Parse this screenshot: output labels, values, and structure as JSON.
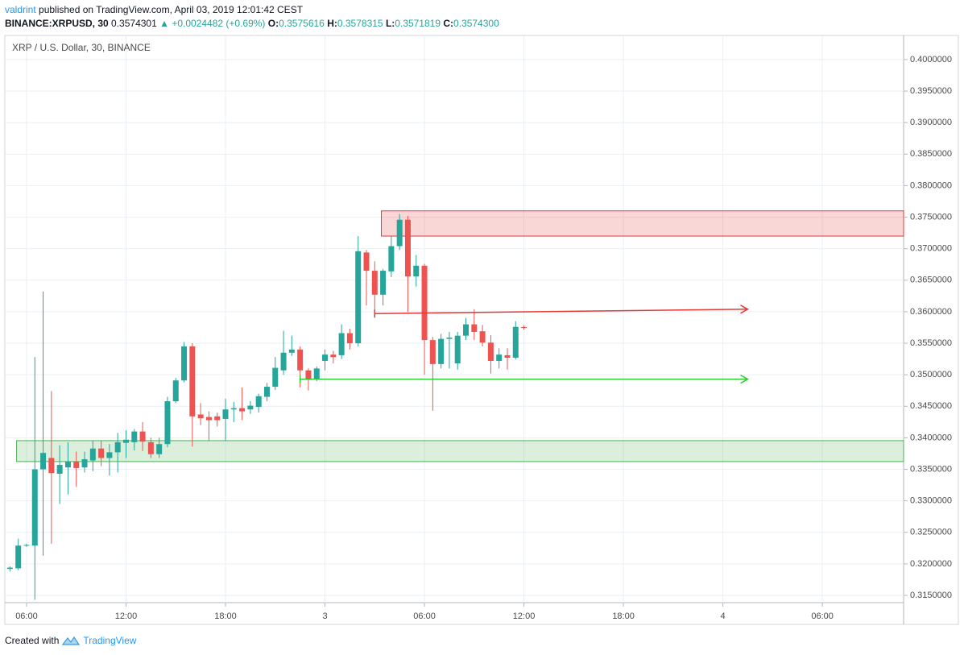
{
  "header": {
    "author": "valdrint",
    "published": "published on TradingView.com, April 03, 2019 12:01:42 CEST",
    "symbol": "BINANCE:XRPUSD, 30",
    "last": "0.3574301",
    "change": "▲ +0.0024482 (+0.69%)",
    "ohlc": [
      {
        "label": "O:",
        "value": "0.3575616"
      },
      {
        "label": "H:",
        "value": "0.3578315"
      },
      {
        "label": "L:",
        "value": "0.3571819"
      },
      {
        "label": "C:",
        "value": "0.3574300"
      }
    ]
  },
  "footer": {
    "created": "Created with",
    "brand": "TradingView"
  },
  "chart_data": {
    "type": "candlestick",
    "title": "XRP / U.S. Dollar, 30, BINANCE",
    "up_color": "#26a69a",
    "down_color": "#ef5350",
    "grid": true,
    "xlim": [
      4.69,
      58.9
    ],
    "ylim": [
      0.31385,
      0.40383
    ],
    "xticks": [
      {
        "value": 6,
        "label": "06:00"
      },
      {
        "value": 12,
        "label": "12:00"
      },
      {
        "value": 18,
        "label": "18:00"
      },
      {
        "value": 24,
        "label": "3"
      },
      {
        "value": 30,
        "label": "06:00"
      },
      {
        "value": 36,
        "label": "12:00"
      },
      {
        "value": 42,
        "label": "18:00"
      },
      {
        "value": 48,
        "label": "4"
      },
      {
        "value": 54,
        "label": "06:00"
      }
    ],
    "yticks": [
      {
        "value": 0.315,
        "label": "0.3150000"
      },
      {
        "value": 0.32,
        "label": "0.3200000"
      },
      {
        "value": 0.325,
        "label": "0.3250000"
      },
      {
        "value": 0.33,
        "label": "0.3300000"
      },
      {
        "value": 0.335,
        "label": "0.3350000"
      },
      {
        "value": 0.34,
        "label": "0.3400000"
      },
      {
        "value": 0.345,
        "label": "0.3450000"
      },
      {
        "value": 0.35,
        "label": "0.3500000"
      },
      {
        "value": 0.355,
        "label": "0.3550000"
      },
      {
        "value": 0.36,
        "label": "0.3600000"
      },
      {
        "value": 0.365,
        "label": "0.3650000"
      },
      {
        "value": 0.37,
        "label": "0.3700000"
      },
      {
        "value": 0.375,
        "label": "0.3750000"
      },
      {
        "value": 0.38,
        "label": "0.3800000"
      },
      {
        "value": 0.385,
        "label": "0.3850000"
      },
      {
        "value": 0.39,
        "label": "0.3900000"
      },
      {
        "value": 0.395,
        "label": "0.3950000"
      },
      {
        "value": 0.4,
        "label": "0.4000000"
      }
    ],
    "x": [
      5,
      5.5,
      6,
      6.5,
      7,
      7.5,
      8,
      8.5,
      9,
      9.5,
      10,
      10.5,
      11,
      11.5,
      12,
      12.5,
      13,
      13.5,
      14,
      14.5,
      15,
      15.5,
      16,
      16.5,
      17,
      17.5,
      18,
      18.5,
      19,
      19.5,
      20,
      20.5,
      21,
      21.5,
      22,
      22.5,
      23,
      23.5,
      24,
      24.5,
      25,
      25.5,
      26,
      26.5,
      27,
      27.5,
      28,
      28.5,
      29,
      29.5,
      30,
      30.5,
      31,
      31.5,
      32,
      32.5,
      33,
      33.5,
      34,
      34.5,
      35,
      35.5,
      36
    ],
    "open": [
      0.3192,
      0.3193,
      0.3229,
      0.3229,
      0.335,
      0.3368,
      0.3343,
      0.3353,
      0.3362,
      0.3353,
      0.3364,
      0.3383,
      0.3368,
      0.3377,
      0.3392,
      0.3393,
      0.341,
      0.3393,
      0.3374,
      0.339,
      0.3458,
      0.3491,
      0.3545,
      0.3437,
      0.3433,
      0.3434,
      0.343,
      0.3445,
      0.3447,
      0.3445,
      0.3449,
      0.3465,
      0.3481,
      0.3507,
      0.3535,
      0.354,
      0.3507,
      0.3493,
      0.3522,
      0.3532,
      0.3531,
      0.3566,
      0.355,
      0.3694,
      0.3665,
      0.3627,
      0.3664,
      0.3704,
      0.3746,
      0.3656,
      0.3673,
      0.3555,
      0.3517,
      0.3557,
      0.3518,
      0.3562,
      0.358,
      0.3569,
      0.3551,
      0.3522,
      0.3531,
      0.3527,
      0.3575616
    ],
    "high": [
      0.3196,
      0.324,
      0.3232,
      0.3528,
      0.3632,
      0.3474,
      0.3388,
      0.3393,
      0.3378,
      0.3378,
      0.3395,
      0.3396,
      0.339,
      0.3408,
      0.3412,
      0.3414,
      0.3425,
      0.34,
      0.34,
      0.3465,
      0.3495,
      0.3552,
      0.355,
      0.3455,
      0.3442,
      0.344,
      0.3462,
      0.3457,
      0.348,
      0.3458,
      0.347,
      0.3487,
      0.3528,
      0.357,
      0.3562,
      0.3545,
      0.351,
      0.3513,
      0.354,
      0.3538,
      0.358,
      0.3573,
      0.372,
      0.3698,
      0.368,
      0.3668,
      0.372,
      0.3755,
      0.3752,
      0.369,
      0.3676,
      0.356,
      0.3565,
      0.3568,
      0.3568,
      0.359,
      0.3604,
      0.3579,
      0.3563,
      0.3542,
      0.3542,
      0.3585,
      0.3578315
    ],
    "low": [
      0.3188,
      0.319,
      0.3227,
      0.3143,
      0.3213,
      0.3232,
      0.3295,
      0.331,
      0.3322,
      0.3345,
      0.3347,
      0.3355,
      0.334,
      0.3345,
      0.3368,
      0.338,
      0.3379,
      0.3368,
      0.3368,
      0.3385,
      0.3455,
      0.3488,
      0.3386,
      0.342,
      0.3395,
      0.3418,
      0.3395,
      0.3425,
      0.3428,
      0.3438,
      0.344,
      0.3458,
      0.3476,
      0.35,
      0.353,
      0.348,
      0.3475,
      0.349,
      0.3507,
      0.3518,
      0.3525,
      0.354,
      0.3545,
      0.361,
      0.3595,
      0.361,
      0.3655,
      0.3698,
      0.36,
      0.364,
      0.35,
      0.3443,
      0.351,
      0.351,
      0.3508,
      0.3555,
      0.3555,
      0.3545,
      0.3502,
      0.351,
      0.3508,
      0.3524,
      0.3571819
    ],
    "close": [
      0.3194,
      0.3229,
      0.323,
      0.335,
      0.3376,
      0.3344,
      0.3357,
      0.3362,
      0.3352,
      0.3366,
      0.3383,
      0.3368,
      0.3377,
      0.3393,
      0.3397,
      0.341,
      0.3394,
      0.3374,
      0.339,
      0.3458,
      0.3491,
      0.3545,
      0.3434,
      0.3431,
      0.3428,
      0.3428,
      0.3445,
      0.3447,
      0.3442,
      0.3451,
      0.3466,
      0.3481,
      0.3511,
      0.3535,
      0.354,
      0.3507,
      0.3492,
      0.351,
      0.3532,
      0.3528,
      0.3566,
      0.355,
      0.3696,
      0.3665,
      0.3627,
      0.3665,
      0.3704,
      0.3746,
      0.3656,
      0.3673,
      0.3555,
      0.3517,
      0.3557,
      0.3559,
      0.3562,
      0.358,
      0.3568,
      0.3551,
      0.3522,
      0.3532,
      0.3527,
      0.3576,
      0.35743
    ],
    "zones": [
      {
        "ylim": [
          0.372,
          0.376
        ],
        "x_from": 27.4,
        "color": "#e53935"
      },
      {
        "ylim": [
          0.33623,
          0.33955
        ],
        "x_from": 5.4,
        "color": "#4caf50"
      }
    ],
    "arrows": [
      {
        "x": [
          27,
          49.5
        ],
        "y": [
          0.3597,
          0.3604
        ],
        "color": "#e53935"
      },
      {
        "x": [
          22.5,
          49.5
        ],
        "y": [
          0.3493,
          0.3493
        ],
        "color": "#2ecc2e"
      }
    ]
  }
}
